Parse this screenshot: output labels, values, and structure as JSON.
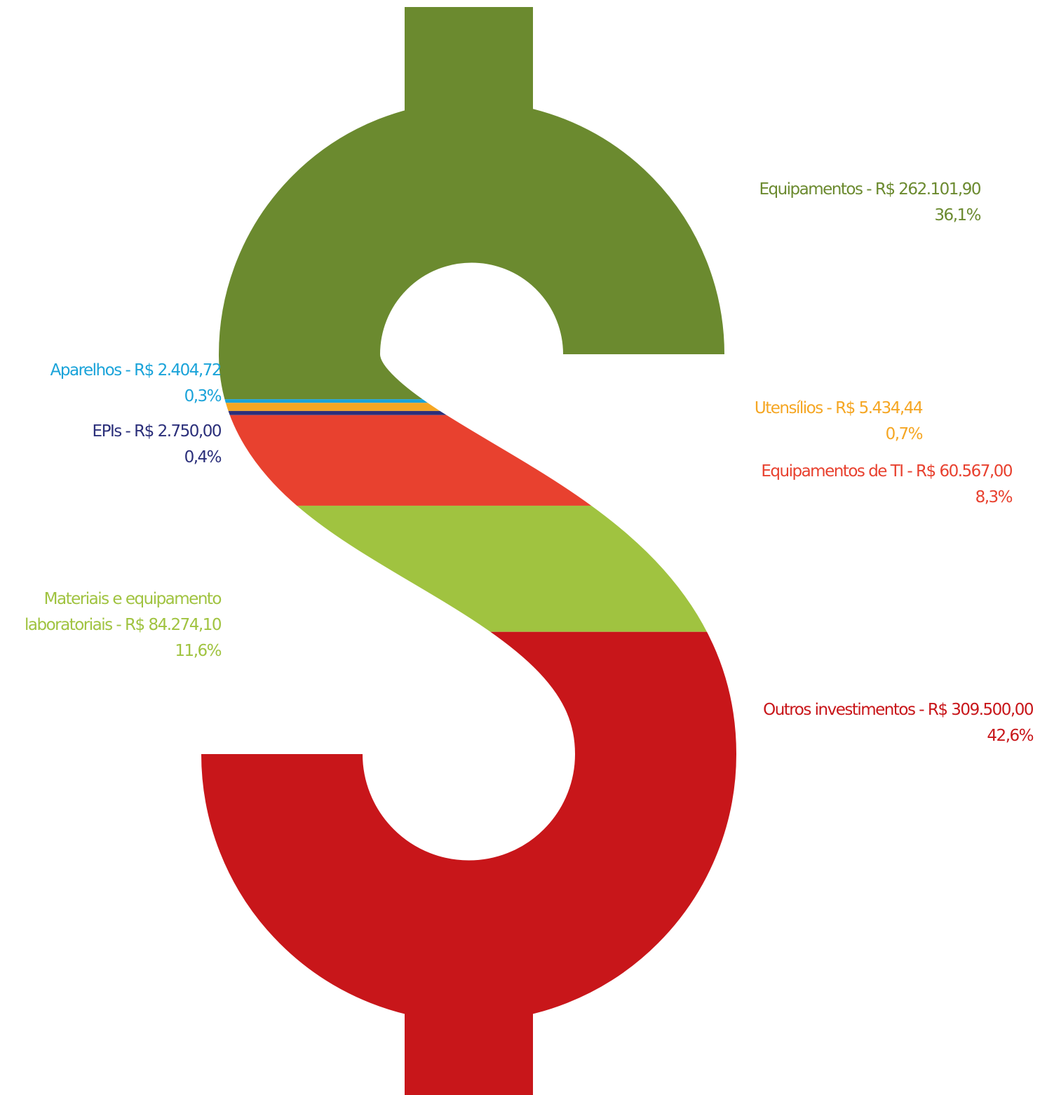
{
  "chart_data": {
    "type": "pictogram",
    "categories": [
      "Equipamentos",
      "Aparelhos",
      "Utensílios",
      "EPIs",
      "Equipamentos de TI",
      "Materiais e equipamento laboratoriais",
      "Outros investimentos"
    ],
    "values": [
      262101.9,
      2404.72,
      5434.44,
      2750.0,
      60567.0,
      84274.1,
      309500.0
    ],
    "value_labels": [
      "R$ 262.101,90",
      "R$ 2.404,72",
      "R$ 5.434,44",
      "R$ 2.750,00",
      "R$ 60.567,00",
      "R$ 84.274,10",
      "R$ 309.500,00"
    ],
    "percents": [
      36.1,
      0.3,
      0.7,
      0.4,
      8.3,
      11.6,
      42.6
    ],
    "percent_labels": [
      "36,1%",
      "0,3%",
      "0,7%",
      "0,4%",
      "8,3%",
      "11,6%",
      "42,6%"
    ],
    "label_separator": " - ",
    "colors": [
      "#6b8a2f",
      "#1aa3d9",
      "#f5a623",
      "#2b2f7a",
      "#e8412f",
      "#a0c340",
      "#c8161a"
    ]
  }
}
